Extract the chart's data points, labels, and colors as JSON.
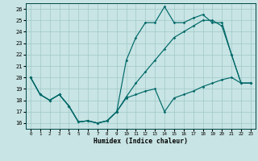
{
  "xlabel": "Humidex (Indice chaleur)",
  "xlim": [
    -0.5,
    23.5
  ],
  "ylim": [
    15.5,
    26.5
  ],
  "yticks": [
    16,
    17,
    18,
    19,
    20,
    21,
    22,
    23,
    24,
    25,
    26
  ],
  "xticks": [
    0,
    1,
    2,
    3,
    4,
    5,
    6,
    7,
    8,
    9,
    10,
    11,
    12,
    13,
    14,
    15,
    16,
    17,
    18,
    19,
    20,
    21,
    22,
    23
  ],
  "bg_color": "#c8e4e4",
  "grid_color": "#a0c8c8",
  "line_color": "#006868",
  "hours": [
    0,
    1,
    2,
    3,
    4,
    5,
    6,
    7,
    8,
    9,
    10,
    11,
    12,
    13,
    14,
    15,
    16,
    17,
    18,
    19,
    20,
    21,
    22,
    23
  ],
  "line_max": [
    20.0,
    18.5,
    18.0,
    18.5,
    17.5,
    16.1,
    16.2,
    16.0,
    16.2,
    17.0,
    21.5,
    23.5,
    24.8,
    24.8,
    26.2,
    24.8,
    24.8,
    25.2,
    25.5,
    24.8,
    24.8,
    22.0,
    19.5,
    19.5
  ],
  "line_mean": [
    20.0,
    18.5,
    18.0,
    18.5,
    17.5,
    16.1,
    16.2,
    16.0,
    16.2,
    17.0,
    18.3,
    19.5,
    20.5,
    21.5,
    22.5,
    23.5,
    24.0,
    24.5,
    25.0,
    25.0,
    24.5,
    22.0,
    19.5,
    19.5
  ],
  "line_min": [
    20.0,
    18.5,
    18.0,
    18.5,
    17.5,
    16.1,
    16.2,
    16.0,
    16.2,
    17.0,
    18.2,
    18.5,
    18.8,
    19.0,
    17.0,
    18.2,
    18.5,
    18.8,
    19.2,
    19.5,
    19.8,
    20.0,
    19.5,
    19.5
  ]
}
